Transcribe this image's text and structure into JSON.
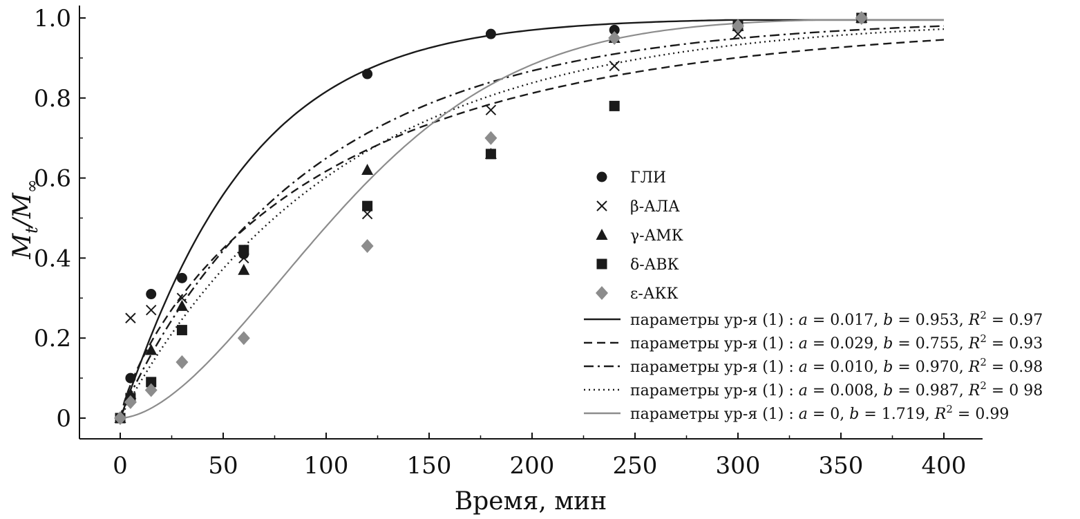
{
  "chart_data": {
    "type": "scatter",
    "xlabel": "Время, мин",
    "ylabel_main": "M",
    "ylabel_sub_t": "t",
    "ylabel_sub_inf": "∞",
    "xlim": [
      -20,
      420
    ],
    "ylim": [
      -0.05,
      1.02
    ],
    "xticks": [
      0,
      50,
      100,
      150,
      200,
      250,
      300,
      350,
      400
    ],
    "yticks": [
      0,
      0.2,
      0.4,
      0.6,
      0.8,
      1.0
    ],
    "ytick_labels": [
      "0",
      "0.2",
      "0.4",
      "0.6",
      "0.8",
      "1.0"
    ],
    "legend_position": "right",
    "series": [
      {
        "name": "ГЛИ",
        "marker": "circle",
        "color": "#1a1a1a",
        "x": [
          0,
          5,
          15,
          30,
          60,
          120,
          180,
          240,
          300,
          360
        ],
        "y": [
          0,
          0.1,
          0.31,
          0.35,
          0.41,
          0.86,
          0.96,
          0.97,
          0.98,
          1.0
        ]
      },
      {
        "name": "β-АЛА",
        "marker": "cross",
        "color": "#1a1a1a",
        "x": [
          0,
          5,
          15,
          30,
          60,
          120,
          180,
          240,
          300,
          360
        ],
        "y": [
          0,
          0.25,
          0.27,
          0.3,
          0.4,
          0.51,
          0.77,
          0.88,
          0.96,
          1.0
        ]
      },
      {
        "name": "γ-АМК",
        "marker": "triangle",
        "color": "#1a1a1a",
        "x": [
          0,
          5,
          15,
          30,
          60,
          120,
          180,
          240,
          300,
          360
        ],
        "y": [
          0,
          0.06,
          0.17,
          0.28,
          0.37,
          0.62,
          0.66,
          0.95,
          0.98,
          1.0
        ]
      },
      {
        "name": "δ-АВК",
        "marker": "square",
        "color": "#1a1a1a",
        "x": [
          0,
          5,
          15,
          30,
          60,
          120,
          180,
          240,
          300,
          360
        ],
        "y": [
          0,
          0.05,
          0.09,
          0.22,
          0.42,
          0.53,
          0.66,
          0.78,
          0.98,
          1.0
        ]
      },
      {
        "name": "ε-АКК",
        "marker": "diamond",
        "color": "#8c8c8c",
        "x": [
          0,
          5,
          15,
          30,
          60,
          120,
          180,
          240,
          300,
          360
        ],
        "y": [
          0,
          0.04,
          0.07,
          0.14,
          0.2,
          0.43,
          0.7,
          0.95,
          0.98,
          1.0
        ]
      }
    ],
    "fits": [
      {
        "label": "параметры ур-я (1)  : a = 0.017, b = 0.953, R2 = 0.97",
        "label_prefix": "параметры ур-я (1)  : ",
        "a_text": "a = 0.017, ",
        "b_text": "b = 0.953, ",
        "r2_text": "R = 0.97",
        "a": 0.017,
        "b": 0.953,
        "R2": 0.97,
        "style": "solid",
        "color": "#1a1a1a"
      },
      {
        "label": "параметры ур-я (1)  : a = 0.029, b = 0.755, R2 = 0.93",
        "label_prefix": "параметры ур-я (1)  : ",
        "a_text": "a = 0.029, ",
        "b_text": "b = 0.755, ",
        "r2_text": "R = 0.93",
        "a": 0.029,
        "b": 0.755,
        "R2": 0.93,
        "style": "dashed",
        "color": "#1a1a1a"
      },
      {
        "label": "параметры ур-я (1)  : a = 0.010, b = 0.970, R2 = 0.98",
        "label_prefix": "параметры ур-я (1)  : ",
        "a_text": "a = 0.010, ",
        "b_text": "b = 0.970, ",
        "r2_text": "R = 0.98",
        "a": 0.01,
        "b": 0.97,
        "R2": 0.98,
        "style": "dashdot",
        "color": "#1a1a1a"
      },
      {
        "label": "параметры ур-я (1)  : a = 0.008, b = 0.987, R2 = 0 98",
        "label_prefix": "параметры ур-я (1)  : ",
        "a_text": "a = 0.008, ",
        "b_text": "b = 0.987, ",
        "r2_text": "R = 0 98",
        "a": 0.008,
        "b": 0.987,
        "R2": 0.98,
        "style": "dotted",
        "color": "#1a1a1a"
      },
      {
        "label": "параметры ур-я (1)  : a = 0, b = 1.719, R2 = 0.99",
        "label_prefix": "параметры ур-я (1)  : ",
        "a_text": "a = 0, ",
        "b_text": "b = 1.719, ",
        "r2_text": "R = 0.99",
        "a": 0.0,
        "b": 1.719,
        "R2": 0.99,
        "style": "solid",
        "color": "#8c8c8c"
      }
    ]
  }
}
